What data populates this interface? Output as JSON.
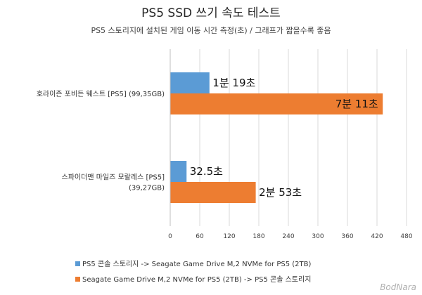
{
  "chart_data": {
    "type": "bar",
    "orientation": "horizontal",
    "title": "PS5 SSD 쓰기 속도 테스트",
    "subtitle": "PS5 스토리지에 설치된 게임 이동 시간 측정(초) / 그래프가 짧을수록 좋음",
    "categories": [
      [
        "호라이즌 포비든 웨스트 [PS5] (99,35GB)"
      ],
      [
        "스파이더맨 마일즈 모랄레스 [PS5]",
        "(39,27GB)"
      ]
    ],
    "xlim": [
      0,
      480
    ],
    "xticks": [
      0,
      60,
      120,
      180,
      240,
      300,
      360,
      420,
      480
    ],
    "grid": true,
    "legend_position": "bottom",
    "series": [
      {
        "name": "PS5 콘솔 스토리지 -> Seagate Game Drive M,2 NVMe for PS5 (2TB)",
        "color": "#5b9bd5",
        "values": [
          79,
          32.5
        ],
        "labels": [
          "1분 19초",
          "32.5초"
        ]
      },
      {
        "name": "Seagate Game Drive M,2 NVMe for PS5 (2TB) -> PS5 콘솔 스토리지",
        "color": "#ed7d31",
        "values": [
          431,
          173
        ],
        "labels": [
          "7분 11초",
          "2분 53초"
        ]
      }
    ]
  },
  "watermark": "BodNara"
}
